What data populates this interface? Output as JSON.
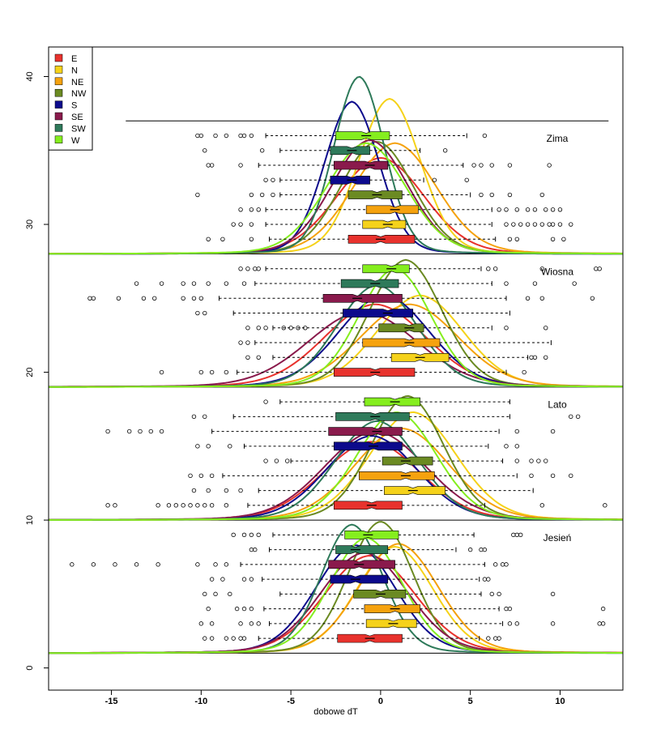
{
  "chart_data": {
    "type": "box+density",
    "title": "",
    "xlabel": "dobowe dT",
    "ylabel": "",
    "xlim": [
      -18.5,
      13.5
    ],
    "ylim": [
      -1.5,
      42
    ],
    "x_ticks": [
      -15,
      -10,
      -5,
      0,
      5,
      10
    ],
    "y_ticks": [
      0,
      10,
      20,
      30,
      40
    ],
    "grid": false,
    "legend": {
      "placement": "top-left",
      "entries": [
        {
          "name": "E",
          "color": "#e8322d"
        },
        {
          "name": "N",
          "color": "#f5d21a"
        },
        {
          "name": "NE",
          "color": "#f5a20e"
        },
        {
          "name": "NW",
          "color": "#6b8a22"
        },
        {
          "name": "S",
          "color": "#0c0a8c"
        },
        {
          "name": "SE",
          "color": "#8a1a4c"
        },
        {
          "name": "SW",
          "color": "#2e7a5a"
        },
        {
          "name": "W",
          "color": "#85ee1e"
        }
      ]
    },
    "separators_y": [
      1,
      10,
      19,
      28,
      37
    ],
    "seasons": [
      {
        "name": "Jesień",
        "base_y": 1,
        "label_y": 8.8,
        "boxes": [
          {
            "dir": "E",
            "y": 2,
            "whisker_lo": -6.8,
            "q1": -2.4,
            "median": -0.6,
            "q3": 1.2,
            "whisker_hi": 5.5,
            "outliers": [
              -9.8,
              -9.4,
              -8.6,
              -8.2,
              -7.8,
              -7.6,
              6.0,
              6.4,
              6.6
            ]
          },
          {
            "dir": "N",
            "y": 3,
            "whisker_lo": -6.2,
            "q1": -0.8,
            "median": 0.7,
            "q3": 2.0,
            "whisker_hi": 6.8,
            "outliers": [
              -10.0,
              -9.4,
              -7.8,
              -7.2,
              -6.8,
              7.2,
              7.6,
              9.6,
              12.2,
              12.4
            ]
          },
          {
            "dir": "NE",
            "y": 4,
            "whisker_lo": -6.5,
            "q1": -0.9,
            "median": 0.8,
            "q3": 2.2,
            "whisker_hi": 6.6,
            "outliers": [
              -9.6,
              -8.0,
              -7.6,
              -7.2,
              7.0,
              7.2,
              12.4
            ]
          },
          {
            "dir": "NW",
            "y": 5,
            "whisker_lo": -5.6,
            "q1": -1.5,
            "median": 0.0,
            "q3": 1.4,
            "whisker_hi": 5.6,
            "outliers": [
              -9.8,
              -9.2,
              -8.4,
              6.2,
              6.6,
              9.6
            ]
          },
          {
            "dir": "S",
            "y": 6,
            "whisker_lo": -6.6,
            "q1": -2.8,
            "median": -1.4,
            "q3": 0.4,
            "whisker_hi": 5.5,
            "outliers": [
              -9.4,
              -8.8,
              -7.6,
              -7.2,
              5.8,
              6.0
            ]
          },
          {
            "dir": "SE",
            "y": 7,
            "whisker_lo": -7.8,
            "q1": -2.9,
            "median": -1.2,
            "q3": 0.8,
            "whisker_hi": 5.8,
            "outliers": [
              -17.2,
              -16.0,
              -14.8,
              -13.6,
              -12.4,
              -10.2,
              -9.2,
              -8.6,
              6.4,
              6.8,
              7.0
            ]
          },
          {
            "dir": "SW",
            "y": 8,
            "whisker_lo": -6.2,
            "q1": -2.5,
            "median": -1.4,
            "q3": 0.4,
            "whisker_hi": 4.2,
            "outliers": [
              -7.2,
              -7.0,
              5.0,
              5.6,
              5.8
            ]
          },
          {
            "dir": "W",
            "y": 9,
            "whisker_lo": -6.0,
            "q1": -2.0,
            "median": -0.7,
            "q3": 1.0,
            "whisker_hi": 5.2,
            "outliers": [
              -8.2,
              -7.6,
              -7.2,
              -6.8,
              7.4,
              7.6,
              7.8
            ]
          }
        ]
      },
      {
        "name": "Lato",
        "base_y": 10,
        "label_y": 17.8,
        "boxes": [
          {
            "dir": "E",
            "y": 11,
            "whisker_lo": -7.4,
            "q1": -2.6,
            "median": -0.5,
            "q3": 1.2,
            "whisker_hi": 5.8,
            "outliers": [
              -15.2,
              -14.8,
              -12.4,
              -11.8,
              -11.4,
              -11.0,
              -10.6,
              -10.2,
              -9.8,
              -9.4,
              -8.6,
              9.0,
              12.5
            ]
          },
          {
            "dir": "N",
            "y": 12,
            "whisker_lo": -6.8,
            "q1": 0.2,
            "median": 1.8,
            "q3": 3.6,
            "whisker_hi": 8.5,
            "outliers": [
              -10.4,
              -9.6,
              -8.6,
              -7.8
            ]
          },
          {
            "dir": "NE",
            "y": 13,
            "whisker_lo": -8.8,
            "q1": -1.2,
            "median": 1.4,
            "q3": 3.0,
            "whisker_hi": 7.6,
            "outliers": [
              -10.6,
              -10.0,
              -9.4,
              8.4,
              9.6,
              10.6
            ]
          },
          {
            "dir": "NW",
            "y": 14,
            "whisker_lo": -5.0,
            "q1": 0.1,
            "median": 1.4,
            "q3": 2.9,
            "whisker_hi": 6.8,
            "outliers": [
              -6.4,
              -5.8,
              -5.2,
              7.6,
              8.4,
              8.8,
              9.2
            ]
          },
          {
            "dir": "S",
            "y": 15,
            "whisker_lo": -7.6,
            "q1": -2.6,
            "median": -0.4,
            "q3": 1.2,
            "whisker_hi": 6.0,
            "outliers": [
              -10.2,
              -9.6,
              -8.4,
              7.0,
              7.6
            ]
          },
          {
            "dir": "SE",
            "y": 16,
            "whisker_lo": -9.4,
            "q1": -2.9,
            "median": -0.2,
            "q3": 1.2,
            "whisker_hi": 6.6,
            "outliers": [
              -15.2,
              -14.0,
              -13.4,
              -12.8,
              -12.2,
              7.6,
              9.6
            ]
          },
          {
            "dir": "SW",
            "y": 17,
            "whisker_lo": -8.2,
            "q1": -2.5,
            "median": -0.3,
            "q3": 1.6,
            "whisker_hi": 7.2,
            "outliers": [
              -10.4,
              -9.8,
              10.6,
              11.0
            ]
          },
          {
            "dir": "W",
            "y": 18,
            "whisker_lo": -5.6,
            "q1": -0.9,
            "median": 0.8,
            "q3": 2.2,
            "whisker_hi": 7.2,
            "outliers": [
              -6.4
            ]
          }
        ]
      },
      {
        "name": "Wiosna",
        "base_y": 19,
        "label_y": 26.8,
        "boxes": [
          {
            "dir": "E",
            "y": 20,
            "whisker_lo": -8.0,
            "q1": -2.6,
            "median": -0.3,
            "q3": 1.9,
            "whisker_hi": 7.0,
            "outliers": [
              -12.2,
              -10.0,
              -9.4,
              -8.6,
              8.0
            ]
          },
          {
            "dir": "N",
            "y": 21,
            "whisker_lo": -6.0,
            "q1": 0.6,
            "median": 2.2,
            "q3": 3.8,
            "whisker_hi": 8.2,
            "outliers": [
              -7.4,
              -6.8,
              8.4,
              8.6,
              9.2
            ]
          },
          {
            "dir": "NE",
            "y": 22,
            "whisker_lo": -7.0,
            "q1": -1.0,
            "median": 1.6,
            "q3": 3.3,
            "whisker_hi": 9.5,
            "outliers": [
              -7.8,
              -7.4
            ]
          },
          {
            "dir": "NW",
            "y": 23,
            "whisker_lo": -6.0,
            "q1": -0.1,
            "median": 1.6,
            "q3": 2.4,
            "whisker_hi": 6.2,
            "outliers": [
              -7.4,
              -6.8,
              -6.4,
              -5.4,
              -5.0,
              -4.6,
              -4.2,
              7.0,
              9.2
            ]
          },
          {
            "dir": "S",
            "y": 24,
            "whisker_lo": -8.2,
            "q1": -2.1,
            "median": 0.4,
            "q3": 1.8,
            "whisker_hi": 7.2,
            "outliers": [
              -10.2,
              -9.8
            ]
          },
          {
            "dir": "SE",
            "y": 25,
            "whisker_lo": -9.0,
            "q1": -3.2,
            "median": -1.3,
            "q3": 1.2,
            "whisker_hi": 7.0,
            "outliers": [
              -16.2,
              -16.0,
              -14.6,
              -13.2,
              -12.6,
              -11.0,
              -10.4,
              -10.0,
              8.2,
              9.0,
              11.8
            ]
          },
          {
            "dir": "SW",
            "y": 26,
            "whisker_lo": -7.0,
            "q1": -2.2,
            "median": -0.3,
            "q3": 1.0,
            "whisker_hi": 6.2,
            "outliers": [
              -13.6,
              -12.2,
              -11.0,
              -10.4,
              -9.6,
              -8.6,
              -7.6,
              7.0,
              8.6,
              10.8
            ]
          },
          {
            "dir": "W",
            "y": 27,
            "whisker_lo": -6.4,
            "q1": -1.0,
            "median": 0.6,
            "q3": 1.6,
            "whisker_hi": 5.6,
            "outliers": [
              -7.8,
              -7.4,
              -7.0,
              -6.8,
              6.0,
              6.4,
              9.0,
              12.0,
              12.2
            ]
          }
        ]
      },
      {
        "name": "Zima",
        "base_y": 28,
        "label_y": 35.8,
        "boxes": [
          {
            "dir": "E",
            "y": 29,
            "whisker_lo": -6.2,
            "q1": -1.8,
            "median": 0.0,
            "q3": 1.9,
            "whisker_hi": 6.4,
            "outliers": [
              -9.6,
              -8.8,
              -7.2,
              7.2,
              7.6,
              9.6,
              10.2
            ]
          },
          {
            "dir": "N",
            "y": 30,
            "whisker_lo": -6.4,
            "q1": -1.0,
            "median": 0.4,
            "q3": 1.4,
            "whisker_hi": 6.2,
            "outliers": [
              -8.2,
              -7.8,
              -7.2,
              7.0,
              7.4,
              7.8,
              8.2,
              8.6,
              9.0,
              9.4,
              9.6,
              10.0,
              10.6
            ]
          },
          {
            "dir": "NE",
            "y": 31,
            "whisker_lo": -6.4,
            "q1": -0.8,
            "median": 0.8,
            "q3": 2.1,
            "whisker_hi": 6.2,
            "outliers": [
              -7.8,
              -7.2,
              -6.8,
              6.6,
              7.0,
              7.6,
              8.2,
              8.6,
              9.2,
              9.6,
              10.0
            ]
          },
          {
            "dir": "NW",
            "y": 32,
            "whisker_lo": -5.6,
            "q1": -1.8,
            "median": -0.2,
            "q3": 1.2,
            "whisker_hi": 5.0,
            "outliers": [
              -10.2,
              -7.2,
              -6.6,
              -6.0,
              5.6,
              6.2,
              7.2,
              9.0
            ]
          },
          {
            "dir": "S",
            "y": 33,
            "whisker_lo": -5.6,
            "q1": -2.8,
            "median": -1.6,
            "q3": -0.6,
            "whisker_hi": 2.4,
            "outliers": [
              -6.4,
              -6.0,
              3.0,
              4.8
            ]
          },
          {
            "dir": "SE",
            "y": 34,
            "whisker_lo": -6.8,
            "q1": -2.6,
            "median": -0.6,
            "q3": 0.4,
            "whisker_hi": 4.6,
            "outliers": [
              -9.6,
              -9.4,
              -7.8,
              5.2,
              5.6,
              6.2,
              7.2,
              9.4
            ]
          },
          {
            "dir": "SW",
            "y": 35,
            "whisker_lo": -5.6,
            "q1": -2.8,
            "median": -1.6,
            "q3": -0.6,
            "whisker_hi": 2.2,
            "outliers": [
              -9.8,
              -6.6,
              3.6
            ]
          },
          {
            "dir": "W",
            "y": 36,
            "whisker_lo": -6.4,
            "q1": -2.5,
            "median": -0.8,
            "q3": 0.5,
            "whisker_hi": 4.8,
            "outliers": [
              -10.2,
              -10.0,
              -9.2,
              -8.6,
              -7.8,
              -7.6,
              -7.2,
              5.8
            ]
          }
        ]
      }
    ],
    "densities": [
      {
        "season": "Jesień",
        "dir": "E",
        "mean": -0.6,
        "sd": 2.5,
        "peak": 6.6
      },
      {
        "season": "Jesień",
        "dir": "N",
        "mean": 0.8,
        "sd": 2.1,
        "peak": 7.2
      },
      {
        "season": "Jesień",
        "dir": "NE",
        "mean": 1.0,
        "sd": 2.2,
        "peak": 7.4
      },
      {
        "season": "Jesień",
        "dir": "NW",
        "mean": 0.0,
        "sd": 1.8,
        "peak": 8.9
      },
      {
        "season": "Jesień",
        "dir": "S",
        "mean": -1.4,
        "sd": 2.2,
        "peak": 7.3
      },
      {
        "season": "Jesień",
        "dir": "SE",
        "mean": -0.9,
        "sd": 2.4,
        "peak": 6.8
      },
      {
        "season": "Jesień",
        "dir": "SW",
        "mean": -1.6,
        "sd": 1.7,
        "peak": 8.7
      },
      {
        "season": "Jesień",
        "dir": "W",
        "mean": -0.8,
        "sd": 2.0,
        "peak": 7.8
      },
      {
        "season": "Lato",
        "dir": "E",
        "mean": -0.5,
        "sd": 2.7,
        "peak": 5.3
      },
      {
        "season": "Lato",
        "dir": "N",
        "mean": 1.8,
        "sd": 2.4,
        "peak": 7.3
      },
      {
        "season": "Lato",
        "dir": "NE",
        "mean": 1.2,
        "sd": 2.6,
        "peak": 6.2
      },
      {
        "season": "Lato",
        "dir": "NW",
        "mean": 1.5,
        "sd": 2.0,
        "peak": 8.4
      },
      {
        "season": "Lato",
        "dir": "S",
        "mean": -0.5,
        "sd": 2.5,
        "peak": 5.7
      },
      {
        "season": "Lato",
        "dir": "SE",
        "mean": -0.3,
        "sd": 2.8,
        "peak": 6.0
      },
      {
        "season": "Lato",
        "dir": "SW",
        "mean": -0.2,
        "sd": 2.3,
        "peak": 6.7
      },
      {
        "season": "Lato",
        "dir": "W",
        "mean": 0.9,
        "sd": 2.2,
        "peak": 7.3
      },
      {
        "season": "Wiosna",
        "dir": "E",
        "mean": -0.3,
        "sd": 2.8,
        "peak": 5.6
      },
      {
        "season": "Wiosna",
        "dir": "N",
        "mean": 2.2,
        "sd": 2.4,
        "peak": 6.2
      },
      {
        "season": "Wiosna",
        "dir": "NE",
        "mean": 1.6,
        "sd": 2.7,
        "peak": 5.6
      },
      {
        "season": "Wiosna",
        "dir": "NW",
        "mean": 1.4,
        "sd": 2.0,
        "peak": 8.6
      },
      {
        "season": "Wiosna",
        "dir": "S",
        "mean": 0.2,
        "sd": 2.5,
        "peak": 6.2
      },
      {
        "season": "Wiosna",
        "dir": "SE",
        "mean": -1.0,
        "sd": 3.0,
        "peak": 5.1
      },
      {
        "season": "Wiosna",
        "dir": "SW",
        "mean": -0.2,
        "sd": 2.2,
        "peak": 6.9
      },
      {
        "season": "Wiosna",
        "dir": "W",
        "mean": 0.8,
        "sd": 2.0,
        "peak": 8.0
      },
      {
        "season": "Zima",
        "dir": "E",
        "mean": 0.0,
        "sd": 2.4,
        "peak": 6.5
      },
      {
        "season": "Zima",
        "dir": "N",
        "mean": 0.5,
        "sd": 1.7,
        "peak": 10.5
      },
      {
        "season": "Zima",
        "dir": "NE",
        "mean": 0.8,
        "sd": 2.3,
        "peak": 7.5
      },
      {
        "season": "Zima",
        "dir": "NW",
        "mean": -0.2,
        "sd": 2.0,
        "peak": 7.6
      },
      {
        "season": "Zima",
        "dir": "S",
        "mean": -1.6,
        "sd": 1.5,
        "peak": 10.3
      },
      {
        "season": "Zima",
        "dir": "SE",
        "mean": -0.6,
        "sd": 2.1,
        "peak": 7.7
      },
      {
        "season": "Zima",
        "dir": "SW",
        "mean": -1.2,
        "sd": 1.4,
        "peak": 12.0
      },
      {
        "season": "Zima",
        "dir": "W",
        "mean": -0.8,
        "sd": 2.2,
        "peak": 7.5
      }
    ]
  }
}
